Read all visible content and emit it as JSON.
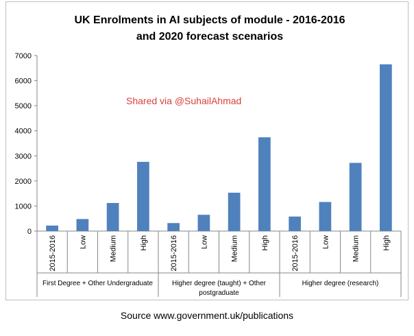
{
  "chart_data": {
    "type": "bar",
    "title_lines": [
      "UK Enrolments in AI subjects of module - 2016-2016",
      "and 2020 forecast scenarios"
    ],
    "categories": [
      "2015-2016",
      "Low",
      "Medium",
      "High",
      "2015-2016",
      "Low",
      "Medium",
      "High",
      "2015-2016",
      "Low",
      "Medium",
      "High"
    ],
    "values": [
      220,
      480,
      1120,
      2760,
      320,
      650,
      1530,
      3740,
      580,
      1160,
      2720,
      6650
    ],
    "groups": [
      {
        "label_lines": [
          "First Degree + Other Undergraduate"
        ]
      },
      {
        "label_lines": [
          "Higher degree (taught) + Other",
          "postgraduate"
        ]
      },
      {
        "label_lines": [
          "Higher degree (research)"
        ]
      }
    ],
    "yticks": [
      "0",
      "1000",
      "2000",
      "3000",
      "4000",
      "5000",
      "6000",
      "7000"
    ],
    "ylim": [
      0,
      7000
    ],
    "grid": false,
    "bar_color": "#4f81bd",
    "watermark": "Shared via @SuhailAhmad",
    "source": "Source www.government.uk/publications"
  }
}
